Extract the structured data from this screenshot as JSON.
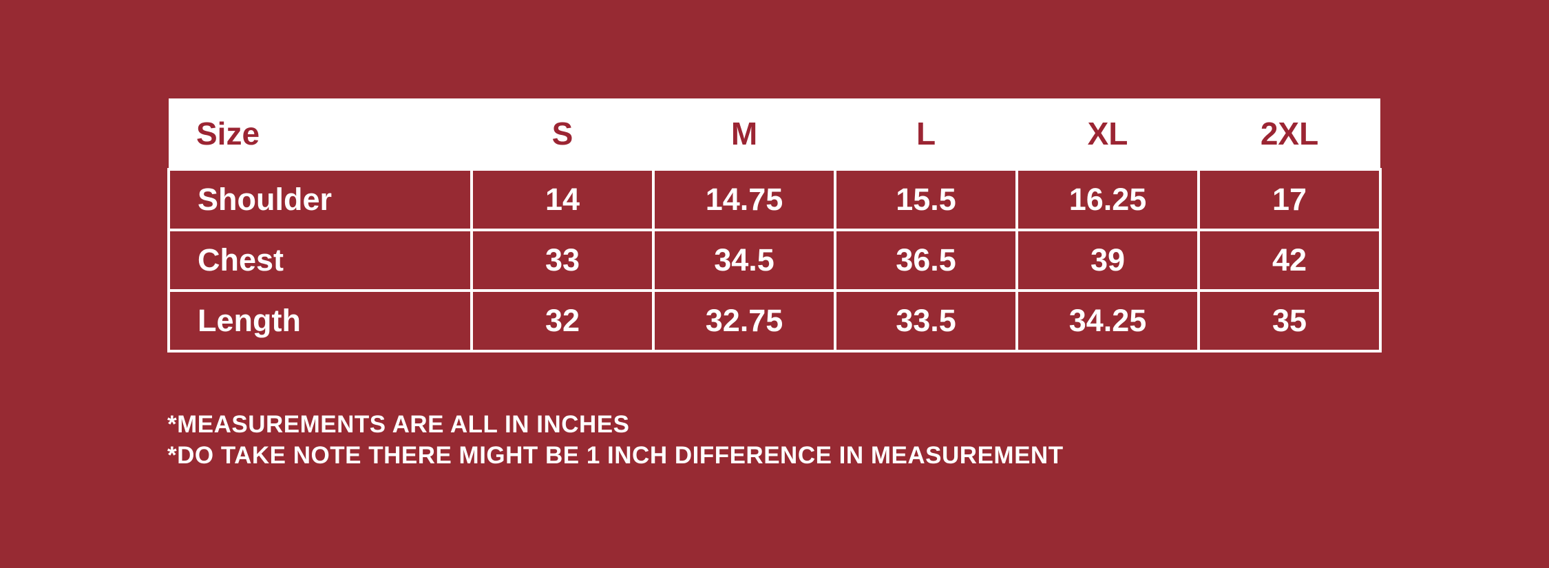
{
  "theme": {
    "background_color": "#972A33",
    "cell_background_color": "#972A33",
    "header_background_color": "#FFFFFF",
    "header_text_color": "#9B2533",
    "body_text_color": "#FFFFFF",
    "grid_border_color": "#FFFFFF"
  },
  "chart_data": {
    "type": "table",
    "title": "",
    "columns": [
      "Size",
      "S",
      "M",
      "L",
      "XL",
      "2XL"
    ],
    "rows": [
      {
        "label": "Shoulder",
        "values": [
          "14",
          "14.75",
          "15.5",
          "16.25",
          "17"
        ]
      },
      {
        "label": "Chest",
        "values": [
          "33",
          "34.5",
          "36.5",
          "39",
          "42"
        ]
      },
      {
        "label": "Length",
        "values": [
          "32",
          "32.75",
          "33.5",
          "34.25",
          "35"
        ]
      }
    ],
    "units": "inches"
  },
  "notes": [
    "*MEASUREMENTS ARE ALL IN INCHES",
    "*DO TAKE NOTE THERE MIGHT BE 1 INCH DIFFERENCE IN MEASUREMENT"
  ]
}
